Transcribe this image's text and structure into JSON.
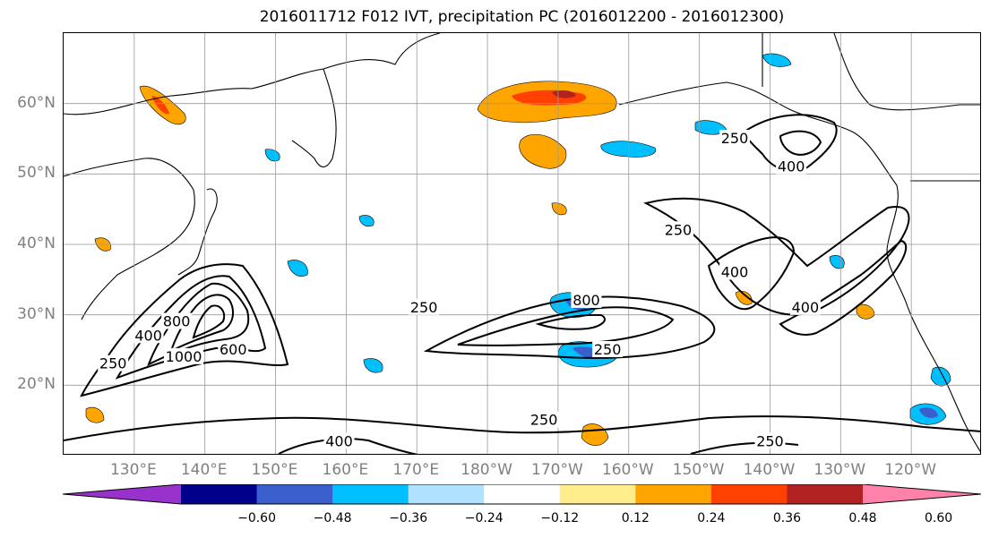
{
  "figure": {
    "title": "2016011712 F012 IVT, precipitation PC (2016012200 - 2016012300)"
  },
  "axes": {
    "lat_labels": [
      "60°N",
      "50°N",
      "40°N",
      "30°N",
      "20°N"
    ],
    "lon_labels": [
      "130°E",
      "140°E",
      "150°E",
      "160°E",
      "170°E",
      "180°W",
      "170°W",
      "160°W",
      "150°W",
      "140°W",
      "130°W",
      "120°W"
    ],
    "lat_range": [
      10,
      70
    ],
    "lon_range_east": [
      120,
      250
    ],
    "grid": true
  },
  "contours": {
    "field": "IVT",
    "levels": [
      250,
      400,
      600,
      800,
      1000
    ],
    "labels": [
      {
        "text": "250",
        "lon": 127,
        "lat": 23
      },
      {
        "text": "400",
        "lon": 132,
        "lat": 27
      },
      {
        "text": "800",
        "lon": 136,
        "lat": 29
      },
      {
        "text": "1000",
        "lon": 137,
        "lat": 24
      },
      {
        "text": "600",
        "lon": 144,
        "lat": 25
      },
      {
        "text": "250",
        "lon": 171,
        "lat": 31
      },
      {
        "text": "800",
        "lon": 194,
        "lat": 32
      },
      {
        "text": "250",
        "lon": 197,
        "lat": 25
      },
      {
        "text": "250",
        "lon": 207,
        "lat": 42
      },
      {
        "text": "400",
        "lon": 215,
        "lat": 36
      },
      {
        "text": "400",
        "lon": 225,
        "lat": 31
      },
      {
        "text": "250",
        "lon": 215,
        "lat": 55
      },
      {
        "text": "400",
        "lon": 223,
        "lat": 51
      },
      {
        "text": "250",
        "lon": 188,
        "lat": 15
      },
      {
        "text": "400",
        "lon": 159,
        "lat": 12
      },
      {
        "text": "250",
        "lon": 220,
        "lat": 12
      }
    ]
  },
  "colorbar": {
    "colors": [
      "#9932cc",
      "#00008b",
      "#3a5fcd",
      "#00bfff",
      "#b0e2ff",
      "#ffffff",
      "#ffec8b",
      "#ffa500",
      "#ff4000",
      "#b22222",
      "#ff82ab"
    ],
    "ticks": [
      "−0.60",
      "−0.48",
      "−0.36",
      "−0.24",
      "−0.12",
      "0.12",
      "0.24",
      "0.36",
      "0.48",
      "0.60"
    ],
    "extend": "both"
  }
}
